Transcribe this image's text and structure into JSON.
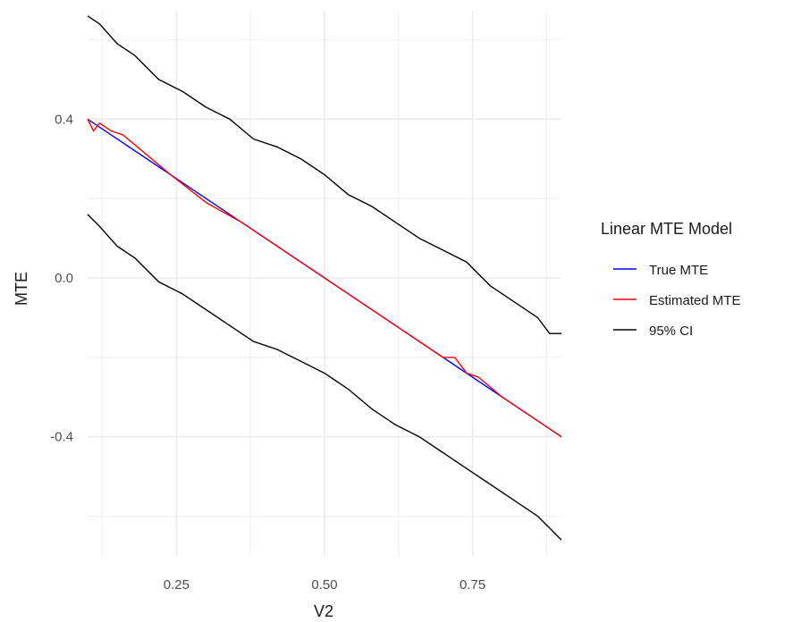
{
  "chart_data": {
    "type": "line",
    "xlabel": "V2",
    "ylabel": "MTE",
    "xlim": [
      0.1,
      0.9
    ],
    "ylim": [
      -0.7,
      0.7
    ],
    "x_ticks": [
      "0.25",
      "0.50",
      "0.75"
    ],
    "y_ticks": [
      "0.4",
      "0.0",
      "-0.4"
    ],
    "grid": true,
    "legend": {
      "title": "Linear MTE Model",
      "position": "right"
    },
    "series": [
      {
        "name": "True MTE",
        "color": "#0000ff",
        "x": [
          0.1,
          0.9
        ],
        "values": [
          0.4,
          -0.4
        ]
      },
      {
        "name": "Estimated MTE",
        "color": "#ff0000",
        "x": [
          0.1,
          0.11,
          0.12,
          0.14,
          0.16,
          0.2,
          0.24,
          0.3,
          0.36,
          0.4,
          0.44,
          0.48,
          0.52,
          0.56,
          0.6,
          0.64,
          0.67,
          0.7,
          0.72,
          0.74,
          0.76,
          0.8,
          0.84,
          0.88,
          0.9
        ],
        "values": [
          0.4,
          0.37,
          0.39,
          0.37,
          0.36,
          0.31,
          0.26,
          0.19,
          0.14,
          0.1,
          0.06,
          0.02,
          -0.02,
          -0.06,
          -0.1,
          -0.14,
          -0.17,
          -0.2,
          -0.2,
          -0.24,
          -0.25,
          -0.3,
          -0.34,
          -0.38,
          -0.4
        ]
      },
      {
        "name": "95% CI",
        "color": "#000000",
        "x": [
          0.1,
          0.12,
          0.15,
          0.18,
          0.22,
          0.26,
          0.3,
          0.34,
          0.38,
          0.42,
          0.46,
          0.5,
          0.54,
          0.58,
          0.62,
          0.66,
          0.7,
          0.74,
          0.78,
          0.82,
          0.86,
          0.88,
          0.9
        ],
        "values": [
          0.66,
          0.64,
          0.59,
          0.56,
          0.5,
          0.47,
          0.43,
          0.4,
          0.35,
          0.33,
          0.3,
          0.26,
          0.21,
          0.18,
          0.14,
          0.1,
          0.07,
          0.04,
          -0.02,
          -0.06,
          -0.1,
          -0.14,
          -0.14
        ]
      },
      {
        "name": "95% CI",
        "color": "#000000",
        "x": [
          0.1,
          0.12,
          0.15,
          0.18,
          0.22,
          0.26,
          0.3,
          0.34,
          0.38,
          0.42,
          0.46,
          0.5,
          0.54,
          0.58,
          0.62,
          0.66,
          0.7,
          0.74,
          0.78,
          0.82,
          0.86,
          0.88,
          0.9
        ],
        "values": [
          0.16,
          0.13,
          0.08,
          0.05,
          -0.01,
          -0.04,
          -0.08,
          -0.12,
          -0.16,
          -0.18,
          -0.21,
          -0.24,
          -0.28,
          -0.33,
          -0.37,
          -0.4,
          -0.44,
          -0.48,
          -0.52,
          -0.56,
          -0.6,
          -0.63,
          -0.66
        ]
      }
    ]
  }
}
